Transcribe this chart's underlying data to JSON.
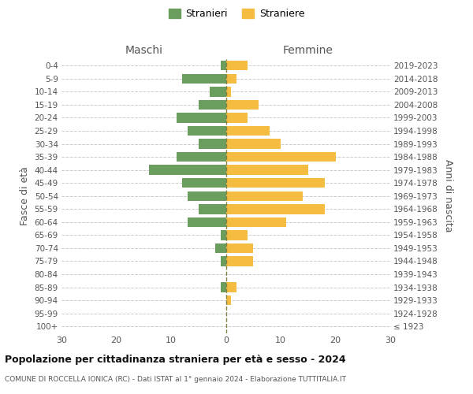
{
  "age_groups": [
    "0-4",
    "5-9",
    "10-14",
    "15-19",
    "20-24",
    "25-29",
    "30-34",
    "35-39",
    "40-44",
    "45-49",
    "50-54",
    "55-59",
    "60-64",
    "65-69",
    "70-74",
    "75-79",
    "80-84",
    "85-89",
    "90-94",
    "95-99",
    "100+"
  ],
  "birth_years": [
    "2019-2023",
    "2014-2018",
    "2009-2013",
    "2004-2008",
    "1999-2003",
    "1994-1998",
    "1989-1993",
    "1984-1988",
    "1979-1983",
    "1974-1978",
    "1969-1973",
    "1964-1968",
    "1959-1963",
    "1954-1958",
    "1949-1953",
    "1944-1948",
    "1939-1943",
    "1934-1938",
    "1929-1933",
    "1924-1928",
    "≤ 1923"
  ],
  "males": [
    1,
    8,
    3,
    5,
    9,
    7,
    5,
    9,
    14,
    8,
    7,
    5,
    7,
    1,
    2,
    1,
    0,
    1,
    0,
    0,
    0
  ],
  "females": [
    4,
    2,
    1,
    6,
    4,
    8,
    10,
    20,
    15,
    18,
    14,
    18,
    11,
    4,
    5,
    5,
    0,
    2,
    1,
    0,
    0
  ],
  "male_color": "#6b9e5e",
  "female_color": "#f5bc42",
  "dashed_line_color": "#808040",
  "grid_color": "#cccccc",
  "background_color": "#ffffff",
  "title": "Popolazione per cittadinanza straniera per età e sesso - 2024",
  "subtitle": "COMUNE DI ROCCELLA IONICA (RC) - Dati ISTAT al 1° gennaio 2024 - Elaborazione TUTTITALIA.IT",
  "left_header": "Maschi",
  "right_header": "Femmine",
  "left_ylabel": "Fasce di età",
  "right_ylabel": "Anni di nascita",
  "legend_stranieri": "Stranieri",
  "legend_straniere": "Straniere",
  "xlim": 30,
  "bar_height": 0.75
}
